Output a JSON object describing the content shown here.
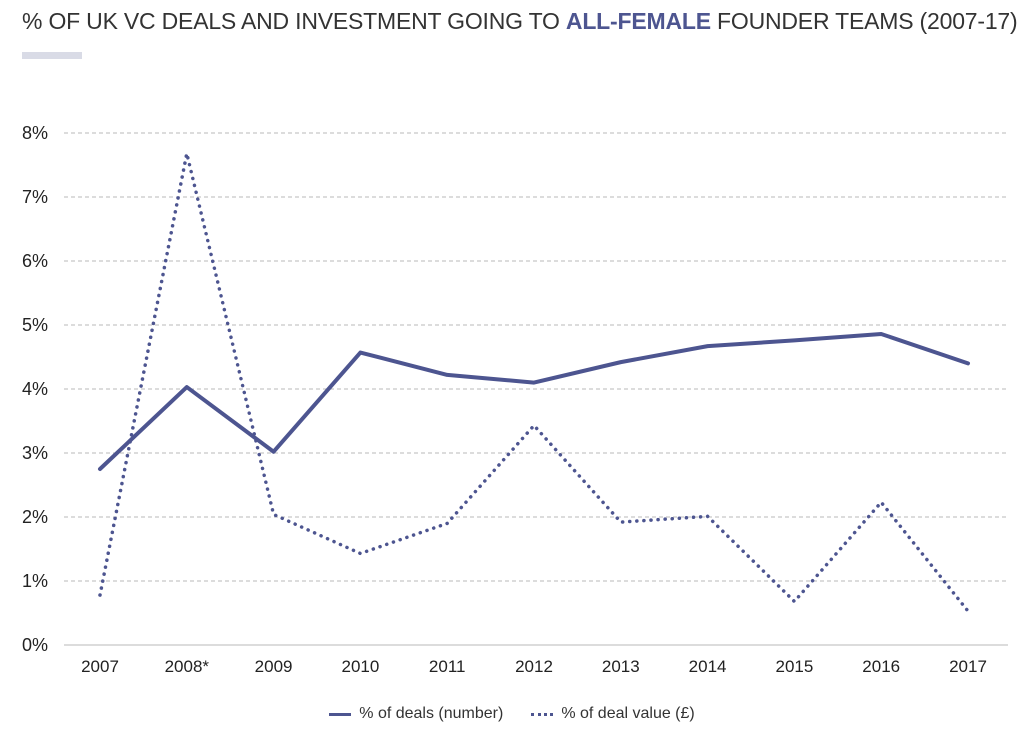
{
  "title": {
    "prefix": "% OF UK VC DEALS AND INVESTMENT GOING TO ",
    "highlight": "ALL-FEMALE",
    "suffix": " FOUNDER TEAMS (2007-17)"
  },
  "accent_color": "#4d5590",
  "chart_data": {
    "type": "line",
    "categories": [
      "2007",
      "2008*",
      "2009",
      "2010",
      "2011",
      "2012",
      "2013",
      "2014",
      "2015",
      "2016",
      "2017"
    ],
    "ylim": [
      0,
      8
    ],
    "yticks": [
      "0%",
      "1%",
      "2%",
      "3%",
      "4%",
      "5%",
      "6%",
      "7%",
      "8%"
    ],
    "grid": true,
    "legend_position": "bottom",
    "series": [
      {
        "name": "% of deals (number)",
        "style": "solid",
        "values": [
          2.75,
          4.03,
          3.02,
          4.57,
          4.22,
          4.1,
          4.42,
          4.67,
          4.76,
          4.86,
          4.4
        ]
      },
      {
        "name": "% of deal value (£)",
        "style": "dotted",
        "values": [
          0.78,
          7.68,
          2.04,
          1.43,
          1.9,
          3.43,
          1.92,
          2.01,
          0.68,
          2.23,
          0.53
        ]
      }
    ]
  }
}
